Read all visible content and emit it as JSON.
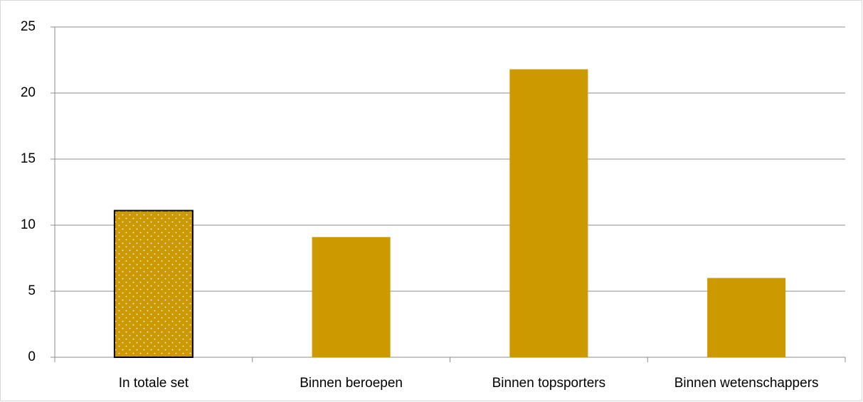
{
  "chart_data": {
    "type": "bar",
    "categories": [
      "In totale set",
      "Binnen beroepen",
      "Binnen topsporters",
      "Binnen wetenschappers"
    ],
    "values": [
      11.1,
      9.1,
      21.8,
      6.0
    ],
    "color": "#cc9900",
    "bar_styles": [
      "dotted",
      "solid",
      "solid",
      "solid"
    ],
    "ylim": [
      0,
      25
    ],
    "yticks": [
      0,
      5,
      10,
      15,
      20,
      25
    ],
    "grid": true
  }
}
